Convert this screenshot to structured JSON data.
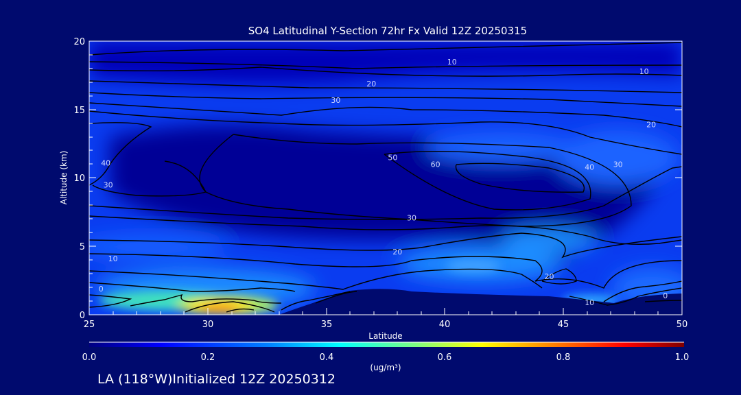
{
  "chart_data": {
    "type": "heatmap",
    "title": "SO4 Latitudinal Y-Section 72hr  Fx Valid 12Z 20250315",
    "xlabel": "Latitude",
    "ylabel": "Altitude (km)",
    "xlim": [
      25,
      50
    ],
    "ylim": [
      0,
      20
    ],
    "x_ticks": [
      "25",
      "30",
      "35",
      "40",
      "45",
      "50"
    ],
    "y_ticks": [
      "0",
      "5",
      "10",
      "15",
      "20"
    ],
    "colorbar": {
      "range": [
        0.0,
        1.0
      ],
      "ticks": [
        "0.0",
        "0.2",
        "0.4",
        "0.6",
        "0.8",
        "1.0"
      ],
      "unit": "(ug/m³)",
      "colors": [
        "#000080",
        "#0000ff",
        "#0080ff",
        "#00ffff",
        "#80ff80",
        "#ffff00",
        "#ff8000",
        "#ff0000",
        "#800000"
      ]
    },
    "contour_labels": [
      {
        "text": "10",
        "lat": 40.3,
        "alt": 18.3
      },
      {
        "text": "10",
        "lat": 48.4,
        "alt": 17.6
      },
      {
        "text": "20",
        "lat": 36.9,
        "alt": 16.7
      },
      {
        "text": "30",
        "lat": 35.4,
        "alt": 15.5
      },
      {
        "text": "20",
        "lat": 48.7,
        "alt": 13.7
      },
      {
        "text": "40",
        "lat": 25.7,
        "alt": 10.9
      },
      {
        "text": "50",
        "lat": 37.8,
        "alt": 11.3
      },
      {
        "text": "60",
        "lat": 39.6,
        "alt": 10.8
      },
      {
        "text": "40",
        "lat": 46.1,
        "alt": 10.6
      },
      {
        "text": "30",
        "lat": 47.3,
        "alt": 10.8
      },
      {
        "text": "30",
        "lat": 25.8,
        "alt": 9.3
      },
      {
        "text": "30",
        "lat": 38.6,
        "alt": 6.9
      },
      {
        "text": "20",
        "lat": 38.0,
        "alt": 4.4
      },
      {
        "text": "10",
        "lat": 26.0,
        "alt": 3.9
      },
      {
        "text": "20",
        "lat": 44.4,
        "alt": 2.6
      },
      {
        "text": "0",
        "lat": 25.5,
        "alt": 1.7
      },
      {
        "text": "10",
        "lat": 46.1,
        "alt": 0.7
      },
      {
        "text": "0",
        "lat": 49.3,
        "alt": 1.2
      }
    ]
  },
  "footer": "LA (118°W)Initialized 12Z 20250312"
}
